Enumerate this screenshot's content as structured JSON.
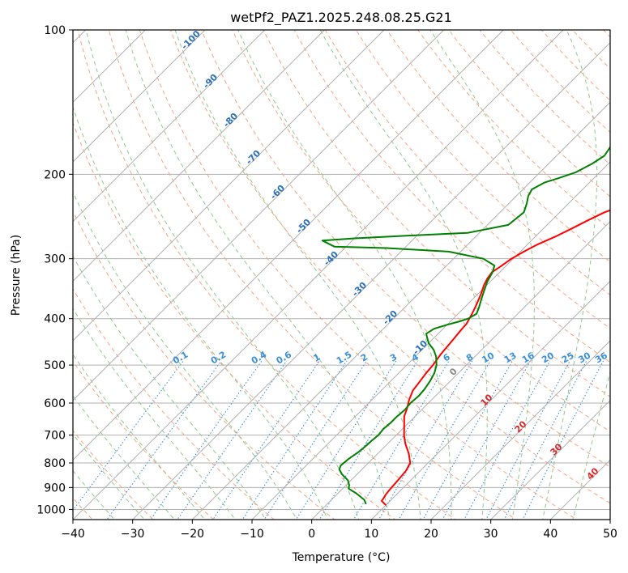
{
  "chart_data": {
    "type": "line",
    "title": "wetPf2_PAZ1.2025.248.08.25.G21",
    "xlabel": "Temperature (°C)",
    "ylabel": "Pressure (hPa)",
    "xlim": [
      -40,
      50
    ],
    "ylim": [
      1050,
      100
    ],
    "y_scale": "log",
    "grid": true,
    "x_ticks": [
      -40,
      -30,
      -20,
      -10,
      0,
      10,
      20,
      30,
      40,
      50
    ],
    "x_tick_labels": [
      "−40",
      "−30",
      "−20",
      "−10",
      "0",
      "10",
      "20",
      "30",
      "40",
      "50"
    ],
    "y_ticks": [
      1000,
      900,
      800,
      700,
      600,
      500,
      400,
      300,
      200,
      100
    ],
    "y_tick_labels": [
      "1000",
      "900",
      "800",
      "700",
      "600",
      "500",
      "400",
      "300",
      "200",
      "100"
    ],
    "series": [
      {
        "color": "#ff0000",
        "points": [
          [
            10.0,
            980
          ],
          [
            8.6,
            960
          ],
          [
            8.2,
            930
          ],
          [
            8.0,
            900
          ],
          [
            7.8,
            860
          ],
          [
            7.6,
            830
          ],
          [
            7.0,
            800
          ],
          [
            5.2,
            765
          ],
          [
            3.0,
            730
          ],
          [
            1.3,
            700
          ],
          [
            -0.2,
            670
          ],
          [
            -1.8,
            640
          ],
          [
            -2.7,
            615
          ],
          [
            -3.8,
            590
          ],
          [
            -4.7,
            565
          ],
          [
            -5.0,
            545
          ],
          [
            -5.4,
            520
          ],
          [
            -5.6,
            500
          ],
          [
            -6.1,
            475
          ],
          [
            -6.4,
            450
          ],
          [
            -6.8,
            420
          ],
          [
            -6.9,
            410
          ],
          [
            -7.3,
            400
          ],
          [
            -7.7,
            390
          ],
          [
            -8.4,
            375
          ],
          [
            -9.5,
            355
          ],
          [
            -10.5,
            340
          ],
          [
            -11.0,
            330
          ],
          [
            -11.3,
            320
          ],
          [
            -10.8,
            311
          ],
          [
            -10.3,
            300
          ],
          [
            -9.4,
            290
          ],
          [
            -8.3,
            280
          ],
          [
            -6.7,
            270
          ],
          [
            -5.3,
            260
          ],
          [
            -4.0,
            250
          ],
          [
            -2.5,
            240
          ],
          [
            0.2,
            230
          ],
          [
            3.5,
            220
          ],
          [
            6.0,
            210
          ],
          [
            8.2,
            200
          ],
          [
            9.8,
            190
          ],
          [
            11.3,
            180
          ],
          [
            13.0,
            170
          ],
          [
            16.0,
            160
          ],
          [
            18.4,
            150
          ],
          [
            20.5,
            140
          ],
          [
            22.1,
            130
          ],
          [
            23.4,
            120
          ],
          [
            25.5,
            112
          ],
          [
            28.0,
            106
          ],
          [
            29.5,
            103
          ],
          [
            31.0,
            100
          ]
        ]
      },
      {
        "color": "#008000",
        "points": [
          [
            6.5,
            975
          ],
          [
            5.5,
            955
          ],
          [
            3.0,
            925
          ],
          [
            1.0,
            905
          ],
          [
            0.5,
            890
          ],
          [
            -0.5,
            870
          ],
          [
            -2.5,
            845
          ],
          [
            -3.8,
            825
          ],
          [
            -4.2,
            810
          ],
          [
            -4.0,
            785
          ],
          [
            -3.5,
            760
          ],
          [
            -3.3,
            740
          ],
          [
            -3.2,
            720
          ],
          [
            -3.0,
            700
          ],
          [
            -3.2,
            680
          ],
          [
            -3.0,
            660
          ],
          [
            -3.0,
            640
          ],
          [
            -2.8,
            620
          ],
          [
            -3.0,
            600
          ],
          [
            -2.8,
            580
          ],
          [
            -3.0,
            560
          ],
          [
            -3.4,
            540
          ],
          [
            -4.0,
            520
          ],
          [
            -5.0,
            500
          ],
          [
            -6.5,
            480
          ],
          [
            -8.0,
            465
          ],
          [
            -10.0,
            450
          ],
          [
            -11.0,
            440
          ],
          [
            -12.0,
            430
          ],
          [
            -11.5,
            420
          ],
          [
            -10.0,
            412
          ],
          [
            -8.4,
            405
          ],
          [
            -7.5,
            400
          ],
          [
            -6.9,
            391
          ],
          [
            -7.5,
            380
          ],
          [
            -8.5,
            365
          ],
          [
            -9.5,
            350
          ],
          [
            -10.5,
            335
          ],
          [
            -11.2,
            320
          ],
          [
            -12.0,
            310
          ],
          [
            -15.0,
            300
          ],
          [
            -22.0,
            290
          ],
          [
            -33.0,
            285
          ],
          [
            -42.0,
            283
          ],
          [
            -45.0,
            275
          ],
          [
            -40.0,
            272
          ],
          [
            -30.0,
            268
          ],
          [
            -22.0,
            265
          ],
          [
            -16.5,
            255
          ],
          [
            -16.0,
            240
          ],
          [
            -17.0,
            230
          ],
          [
            -18.0,
            222
          ],
          [
            -18.5,
            215
          ],
          [
            -17.5,
            208
          ],
          [
            -16.0,
            204
          ],
          [
            -14.0,
            198
          ],
          [
            -12.7,
            190
          ],
          [
            -12.0,
            183
          ],
          [
            -12.5,
            175
          ],
          [
            -13.5,
            168
          ],
          [
            -14.0,
            163
          ],
          [
            -13.0,
            160
          ],
          [
            -12.0,
            156
          ],
          [
            -11.5,
            151
          ],
          [
            -11.0,
            147
          ],
          [
            -9.5,
            144
          ],
          [
            -8.5,
            140
          ],
          [
            -8.0,
            134
          ],
          [
            -7.2,
            128
          ],
          [
            -6.2,
            122
          ],
          [
            -4.5,
            117
          ],
          [
            -3.5,
            110
          ],
          [
            -2.5,
            105
          ],
          [
            -1.5,
            100
          ]
        ]
      }
    ],
    "dry_adiabat_labels": [
      "-100",
      "-90",
      "-80",
      "-70",
      "-60",
      "-50",
      "-40",
      "-30",
      "-20",
      "-10",
      "0",
      "10",
      "20",
      "30",
      "40"
    ],
    "mixing_ratio_labels": [
      "0.1",
      "0.2",
      "0.4",
      "0.6",
      "1",
      "1.5",
      "2",
      "3",
      "4",
      "6",
      "8",
      "10",
      "13",
      "16",
      "20",
      "25",
      "30",
      "36"
    ]
  },
  "colors": {
    "temperature": "#ff0000",
    "dewpoint": "#008000",
    "isotherm": "#555555",
    "grid": "#b0b0b0",
    "dry_adiabat": "#f4a582",
    "moist_adiabat": "#8ec98e",
    "mixing_ratio": "#3a8fd9",
    "label_blue": "#2a6fb5",
    "label_red": "#d62728",
    "label_gray": "#888888"
  }
}
